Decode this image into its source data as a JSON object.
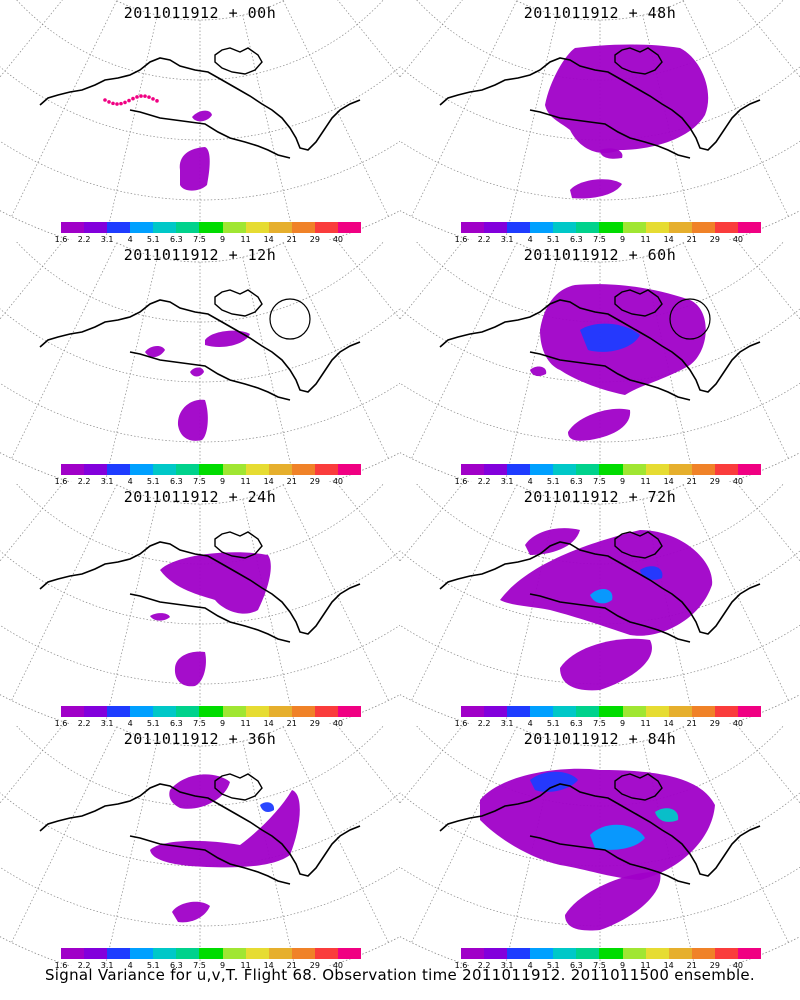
{
  "panels": [
    {
      "title": "2011011912 + 00h",
      "level": 0,
      "circle": false
    },
    {
      "title": "2011011912 + 48h",
      "level": 4,
      "circle": false
    },
    {
      "title": "2011011912 + 12h",
      "level": 1,
      "circle": true
    },
    {
      "title": "2011011912 + 60h",
      "level": 5,
      "circle": true
    },
    {
      "title": "2011011912 + 24h",
      "level": 2,
      "circle": false
    },
    {
      "title": "2011011912 + 72h",
      "level": 6,
      "circle": false
    },
    {
      "title": "2011011912 + 36h",
      "level": 3,
      "circle": false
    },
    {
      "title": "2011011912 + 84h",
      "level": 7,
      "circle": false
    }
  ],
  "legend": {
    "labels": [
      "1.6",
      "2.2",
      "3.1",
      "4",
      "5.1",
      "6.3",
      "7.5",
      "9",
      "11",
      "14",
      "21",
      "29",
      "40"
    ],
    "colors": [
      "#a000c8",
      "#8200dc",
      "#1e3cff",
      "#00a0ff",
      "#00c8c8",
      "#00d28c",
      "#00dc00",
      "#a0e632",
      "#e6dc32",
      "#e6af2d",
      "#f08228",
      "#fa3c3c",
      "#f00082"
    ]
  },
  "caption": "Signal Variance for u,v,T. Flight 68. Observation time 2011011912. 2011011500 ensemble."
}
